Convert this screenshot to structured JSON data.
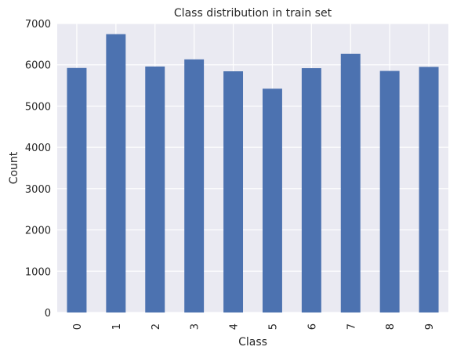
{
  "chart_data": {
    "type": "bar",
    "title": "Class distribution in train set",
    "xlabel": "Class",
    "ylabel": "Count",
    "categories": [
      "0",
      "1",
      "2",
      "3",
      "4",
      "5",
      "6",
      "7",
      "8",
      "9"
    ],
    "values": [
      5923,
      6742,
      5958,
      6131,
      5842,
      5421,
      5918,
      6265,
      5851,
      5949
    ],
    "ylim": [
      0,
      7000
    ],
    "yticks": [
      0,
      1000,
      2000,
      3000,
      4000,
      5000,
      6000,
      7000
    ],
    "grid": true,
    "legend": "none"
  },
  "colors": {
    "bar": "#4c72b0",
    "plot_background": "#eaeaf2",
    "grid": "#ffffff"
  }
}
